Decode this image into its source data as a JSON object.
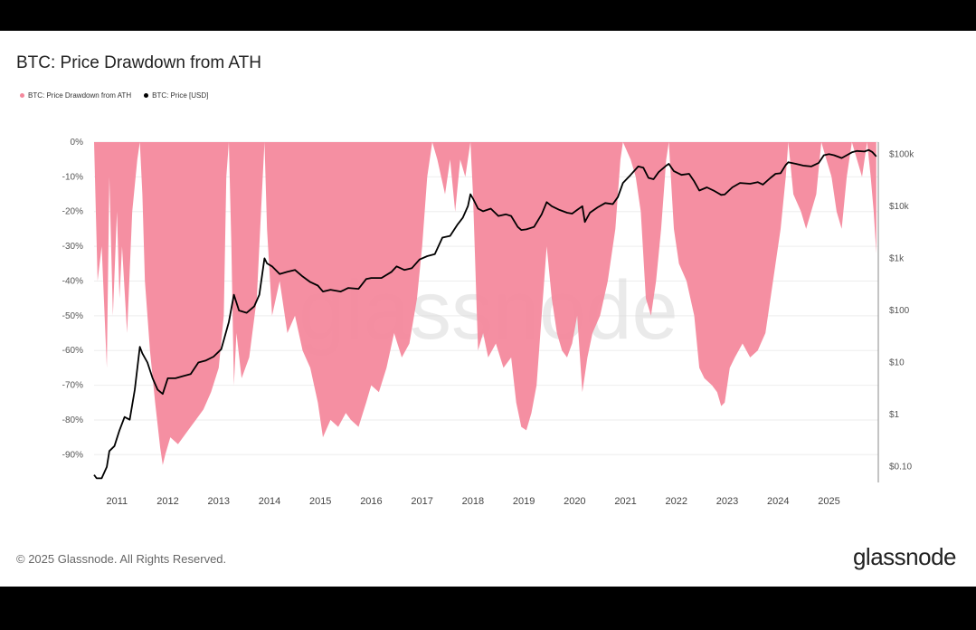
{
  "title": "BTC: Price Drawdown from ATH",
  "legend": [
    {
      "label": "BTC: Price Drawdown from ATH",
      "color": "#f4899d"
    },
    {
      "label": "BTC: Price [USD]",
      "color": "#000000"
    }
  ],
  "watermark": "glassnode",
  "footer": {
    "copyright": "© 2025 Glassnode. All Rights Reserved.",
    "brand": "glassnode"
  },
  "chart_data": {
    "type": "area",
    "title": "BTC: Price Drawdown from ATH",
    "x_range": [
      "2010.6",
      "2025.95"
    ],
    "x_ticks": [
      "2011",
      "2012",
      "2013",
      "2014",
      "2015",
      "2016",
      "2017",
      "2018",
      "2019",
      "2020",
      "2021",
      "2022",
      "2023",
      "2024",
      "2025"
    ],
    "y_left": {
      "ticks": [
        "0%",
        "-10%",
        "-20%",
        "-30%",
        "-40%",
        "-50%",
        "-60%",
        "-70%",
        "-80%",
        "-90%"
      ],
      "range": [
        -98,
        0
      ],
      "unit": "%"
    },
    "y_right": {
      "ticks": [
        "$100k",
        "$10k",
        "$1k",
        "$100",
        "$10",
        "$1",
        "$0.10"
      ],
      "scale": "log",
      "range": [
        0.05,
        170000
      ]
    },
    "series": [
      {
        "name": "BTC: Price Drawdown from ATH",
        "color": "#f4899d",
        "points": [
          [
            2010.55,
            0
          ],
          [
            2010.62,
            -40
          ],
          [
            2010.7,
            -30
          ],
          [
            2010.8,
            -65
          ],
          [
            2010.85,
            -10
          ],
          [
            2010.92,
            -50
          ],
          [
            2011.0,
            -20
          ],
          [
            2011.05,
            -45
          ],
          [
            2011.1,
            -30
          ],
          [
            2011.2,
            -55
          ],
          [
            2011.3,
            -20
          ],
          [
            2011.4,
            -5
          ],
          [
            2011.45,
            0
          ],
          [
            2011.5,
            -15
          ],
          [
            2011.55,
            -40
          ],
          [
            2011.65,
            -60
          ],
          [
            2011.75,
            -75
          ],
          [
            2011.85,
            -88
          ],
          [
            2011.9,
            -93
          ],
          [
            2011.95,
            -90
          ],
          [
            2012.05,
            -85
          ],
          [
            2012.2,
            -87
          ],
          [
            2012.4,
            -83
          ],
          [
            2012.55,
            -80
          ],
          [
            2012.7,
            -77
          ],
          [
            2012.85,
            -72
          ],
          [
            2013.0,
            -65
          ],
          [
            2013.1,
            -50
          ],
          [
            2013.15,
            -10
          ],
          [
            2013.2,
            0
          ],
          [
            2013.25,
            -30
          ],
          [
            2013.3,
            -70
          ],
          [
            2013.35,
            -55
          ],
          [
            2013.45,
            -68
          ],
          [
            2013.6,
            -62
          ],
          [
            2013.75,
            -45
          ],
          [
            2013.85,
            -15
          ],
          [
            2013.9,
            0
          ],
          [
            2013.95,
            -25
          ],
          [
            2014.05,
            -50
          ],
          [
            2014.2,
            -40
          ],
          [
            2014.35,
            -55
          ],
          [
            2014.5,
            -50
          ],
          [
            2014.65,
            -60
          ],
          [
            2014.8,
            -65
          ],
          [
            2014.95,
            -75
          ],
          [
            2015.05,
            -85
          ],
          [
            2015.2,
            -80
          ],
          [
            2015.35,
            -82
          ],
          [
            2015.5,
            -78
          ],
          [
            2015.6,
            -80
          ],
          [
            2015.75,
            -82
          ],
          [
            2015.9,
            -75
          ],
          [
            2016.0,
            -70
          ],
          [
            2016.15,
            -72
          ],
          [
            2016.3,
            -65
          ],
          [
            2016.45,
            -55
          ],
          [
            2016.6,
            -62
          ],
          [
            2016.75,
            -58
          ],
          [
            2016.9,
            -45
          ],
          [
            2017.0,
            -30
          ],
          [
            2017.1,
            -10
          ],
          [
            2017.2,
            0
          ],
          [
            2017.3,
            -5
          ],
          [
            2017.45,
            -15
          ],
          [
            2017.55,
            -5
          ],
          [
            2017.65,
            -20
          ],
          [
            2017.75,
            -5
          ],
          [
            2017.85,
            -10
          ],
          [
            2017.95,
            0
          ],
          [
            2018.0,
            -15
          ],
          [
            2018.1,
            -60
          ],
          [
            2018.2,
            -55
          ],
          [
            2018.3,
            -62
          ],
          [
            2018.45,
            -58
          ],
          [
            2018.6,
            -65
          ],
          [
            2018.75,
            -62
          ],
          [
            2018.85,
            -75
          ],
          [
            2018.95,
            -82
          ],
          [
            2019.05,
            -83
          ],
          [
            2019.15,
            -78
          ],
          [
            2019.25,
            -70
          ],
          [
            2019.35,
            -50
          ],
          [
            2019.45,
            -30
          ],
          [
            2019.55,
            -45
          ],
          [
            2019.65,
            -55
          ],
          [
            2019.75,
            -60
          ],
          [
            2019.85,
            -62
          ],
          [
            2019.95,
            -58
          ],
          [
            2020.05,
            -50
          ],
          [
            2020.15,
            -72
          ],
          [
            2020.25,
            -62
          ],
          [
            2020.35,
            -55
          ],
          [
            2020.5,
            -50
          ],
          [
            2020.65,
            -40
          ],
          [
            2020.8,
            -25
          ],
          [
            2020.9,
            -5
          ],
          [
            2020.95,
            0
          ],
          [
            2021.1,
            -5
          ],
          [
            2021.2,
            -10
          ],
          [
            2021.3,
            -20
          ],
          [
            2021.4,
            -45
          ],
          [
            2021.5,
            -50
          ],
          [
            2021.6,
            -40
          ],
          [
            2021.7,
            -25
          ],
          [
            2021.8,
            -5
          ],
          [
            2021.85,
            0
          ],
          [
            2021.95,
            -25
          ],
          [
            2022.05,
            -35
          ],
          [
            2022.2,
            -40
          ],
          [
            2022.35,
            -50
          ],
          [
            2022.45,
            -65
          ],
          [
            2022.55,
            -68
          ],
          [
            2022.7,
            -70
          ],
          [
            2022.8,
            -72
          ],
          [
            2022.88,
            -76
          ],
          [
            2022.95,
            -75
          ],
          [
            2023.05,
            -65
          ],
          [
            2023.15,
            -62
          ],
          [
            2023.3,
            -58
          ],
          [
            2023.45,
            -62
          ],
          [
            2023.6,
            -60
          ],
          [
            2023.75,
            -55
          ],
          [
            2023.85,
            -45
          ],
          [
            2023.95,
            -35
          ],
          [
            2024.05,
            -25
          ],
          [
            2024.15,
            -10
          ],
          [
            2024.2,
            0
          ],
          [
            2024.3,
            -15
          ],
          [
            2024.45,
            -20
          ],
          [
            2024.55,
            -25
          ],
          [
            2024.65,
            -20
          ],
          [
            2024.75,
            -15
          ],
          [
            2024.85,
            0
          ],
          [
            2024.95,
            -5
          ],
          [
            2025.05,
            -10
          ],
          [
            2025.15,
            -20
          ],
          [
            2025.25,
            -25
          ],
          [
            2025.35,
            -10
          ],
          [
            2025.45,
            0
          ],
          [
            2025.55,
            -5
          ],
          [
            2025.65,
            -10
          ],
          [
            2025.75,
            0
          ],
          [
            2025.82,
            -10
          ],
          [
            2025.88,
            -20
          ],
          [
            2025.93,
            -32
          ]
        ]
      },
      {
        "name": "BTC: Price [USD]",
        "color": "#000000",
        "points": [
          [
            2010.55,
            0.07
          ],
          [
            2010.6,
            0.06
          ],
          [
            2010.7,
            0.06
          ],
          [
            2010.8,
            0.1
          ],
          [
            2010.85,
            0.2
          ],
          [
            2010.95,
            0.25
          ],
          [
            2011.05,
            0.5
          ],
          [
            2011.15,
            0.9
          ],
          [
            2011.25,
            0.8
          ],
          [
            2011.35,
            3
          ],
          [
            2011.45,
            20
          ],
          [
            2011.5,
            15
          ],
          [
            2011.6,
            10
          ],
          [
            2011.7,
            5
          ],
          [
            2011.8,
            3
          ],
          [
            2011.9,
            2.5
          ],
          [
            2012.0,
            5
          ],
          [
            2012.15,
            5
          ],
          [
            2012.3,
            5.5
          ],
          [
            2012.45,
            6
          ],
          [
            2012.6,
            10
          ],
          [
            2012.75,
            11
          ],
          [
            2012.9,
            13
          ],
          [
            2013.05,
            18
          ],
          [
            2013.2,
            60
          ],
          [
            2013.3,
            200
          ],
          [
            2013.4,
            100
          ],
          [
            2013.55,
            90
          ],
          [
            2013.7,
            120
          ],
          [
            2013.8,
            200
          ],
          [
            2013.9,
            1000
          ],
          [
            2013.95,
            800
          ],
          [
            2014.05,
            700
          ],
          [
            2014.2,
            500
          ],
          [
            2014.35,
            550
          ],
          [
            2014.5,
            600
          ],
          [
            2014.65,
            450
          ],
          [
            2014.8,
            350
          ],
          [
            2014.95,
            300
          ],
          [
            2015.05,
            230
          ],
          [
            2015.2,
            250
          ],
          [
            2015.4,
            230
          ],
          [
            2015.55,
            270
          ],
          [
            2015.75,
            260
          ],
          [
            2015.9,
            400
          ],
          [
            2016.0,
            420
          ],
          [
            2016.2,
            420
          ],
          [
            2016.4,
            550
          ],
          [
            2016.5,
            700
          ],
          [
            2016.65,
            600
          ],
          [
            2016.8,
            650
          ],
          [
            2016.95,
            950
          ],
          [
            2017.1,
            1100
          ],
          [
            2017.25,
            1200
          ],
          [
            2017.4,
            2500
          ],
          [
            2017.55,
            2700
          ],
          [
            2017.7,
            4500
          ],
          [
            2017.8,
            6000
          ],
          [
            2017.9,
            10000
          ],
          [
            2017.95,
            17000
          ],
          [
            2018.0,
            14000
          ],
          [
            2018.1,
            9000
          ],
          [
            2018.2,
            8000
          ],
          [
            2018.35,
            9000
          ],
          [
            2018.5,
            6500
          ],
          [
            2018.65,
            7000
          ],
          [
            2018.75,
            6500
          ],
          [
            2018.88,
            4000
          ],
          [
            2018.95,
            3500
          ],
          [
            2019.05,
            3600
          ],
          [
            2019.2,
            4000
          ],
          [
            2019.35,
            7000
          ],
          [
            2019.45,
            12000
          ],
          [
            2019.55,
            10000
          ],
          [
            2019.7,
            8500
          ],
          [
            2019.85,
            7500
          ],
          [
            2019.95,
            7200
          ],
          [
            2020.05,
            8500
          ],
          [
            2020.15,
            10000
          ],
          [
            2020.2,
            5000
          ],
          [
            2020.3,
            7500
          ],
          [
            2020.45,
            9500
          ],
          [
            2020.6,
            11500
          ],
          [
            2020.75,
            11000
          ],
          [
            2020.85,
            15000
          ],
          [
            2020.95,
            28000
          ],
          [
            2021.1,
            40000
          ],
          [
            2021.25,
            58000
          ],
          [
            2021.35,
            55000
          ],
          [
            2021.45,
            35000
          ],
          [
            2021.55,
            33000
          ],
          [
            2021.65,
            45000
          ],
          [
            2021.8,
            60000
          ],
          [
            2021.85,
            65000
          ],
          [
            2021.95,
            47000
          ],
          [
            2022.1,
            40000
          ],
          [
            2022.25,
            42000
          ],
          [
            2022.35,
            30000
          ],
          [
            2022.45,
            20000
          ],
          [
            2022.6,
            23000
          ],
          [
            2022.75,
            19500
          ],
          [
            2022.88,
            16500
          ],
          [
            2022.95,
            16800
          ],
          [
            2023.1,
            23000
          ],
          [
            2023.25,
            28000
          ],
          [
            2023.45,
            27000
          ],
          [
            2023.6,
            29000
          ],
          [
            2023.7,
            26000
          ],
          [
            2023.85,
            35000
          ],
          [
            2023.95,
            42000
          ],
          [
            2024.05,
            43000
          ],
          [
            2024.15,
            62000
          ],
          [
            2024.2,
            70000
          ],
          [
            2024.35,
            65000
          ],
          [
            2024.5,
            60000
          ],
          [
            2024.65,
            58000
          ],
          [
            2024.8,
            68000
          ],
          [
            2024.9,
            95000
          ],
          [
            2025.0,
            100000
          ],
          [
            2025.1,
            95000
          ],
          [
            2025.25,
            84000
          ],
          [
            2025.35,
            95000
          ],
          [
            2025.45,
            108000
          ],
          [
            2025.55,
            115000
          ],
          [
            2025.7,
            112000
          ],
          [
            2025.78,
            120000
          ],
          [
            2025.85,
            110000
          ],
          [
            2025.93,
            90000
          ]
        ]
      }
    ]
  }
}
